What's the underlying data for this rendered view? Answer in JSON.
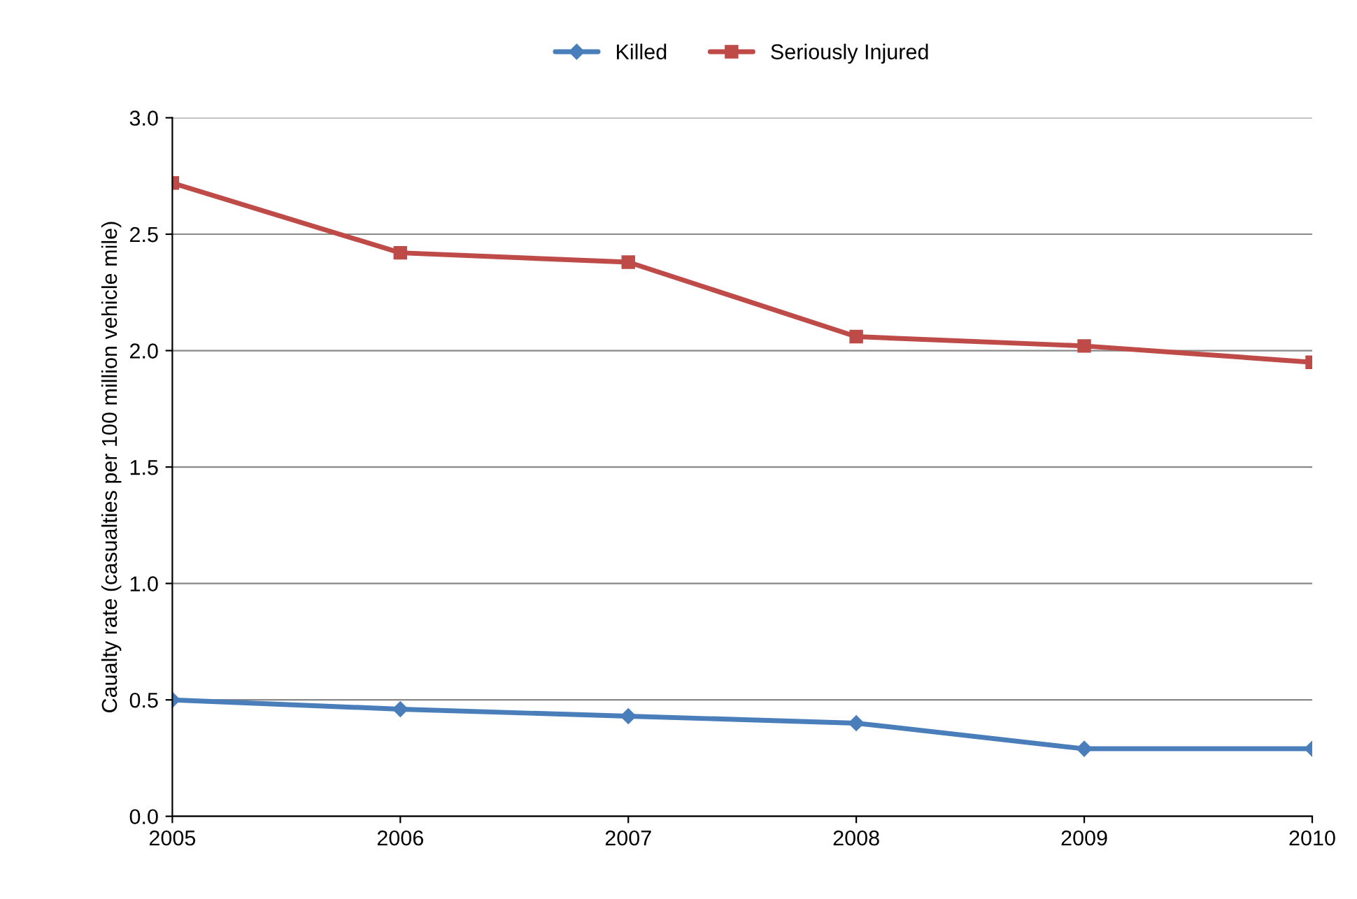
{
  "chart_data": {
    "type": "line",
    "ylabel": "Caualty rate (casualties per 100 million vehicle mile)",
    "categories": [
      "2005",
      "2006",
      "2007",
      "2008",
      "2009",
      "2010"
    ],
    "series": [
      {
        "name": "Killed",
        "color": "#4a7ebb",
        "marker": "diamond",
        "values": [
          0.5,
          0.46,
          0.43,
          0.4,
          0.29,
          0.29
        ]
      },
      {
        "name": "Seriously Injured",
        "color": "#be4b48",
        "marker": "square",
        "values": [
          2.72,
          2.42,
          2.38,
          2.06,
          2.02,
          1.95
        ]
      }
    ],
    "ylim": [
      0,
      3.0
    ],
    "yticks": [
      {
        "value": 0,
        "label": "0.0"
      },
      {
        "value": 0.5,
        "label": "0.5"
      },
      {
        "value": 1.0,
        "label": "1.0"
      },
      {
        "value": 1.5,
        "label": "1.5"
      },
      {
        "value": 2.0,
        "label": "2.0"
      },
      {
        "value": 2.5,
        "label": "2.5"
      },
      {
        "value": 3.0,
        "label": "3.0"
      }
    ],
    "grid": "y",
    "legend": "top",
    "line_style": "solid"
  }
}
